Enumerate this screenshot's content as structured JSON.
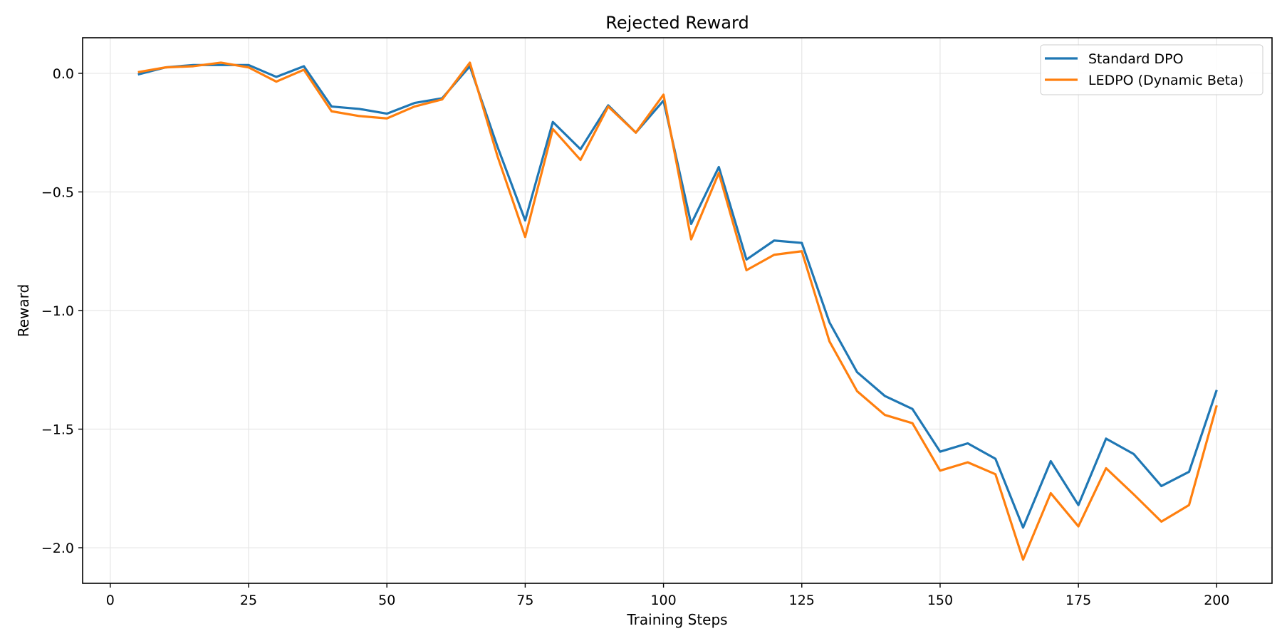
{
  "chart_data": {
    "type": "line",
    "title": "Rejected Reward",
    "xlabel": "Training Steps",
    "ylabel": "Reward",
    "xlim": [
      -5,
      210
    ],
    "ylim": [
      -2.15,
      0.15
    ],
    "x_ticks": [
      0,
      25,
      50,
      75,
      100,
      125,
      150,
      175,
      200
    ],
    "y_ticks": [
      0.0,
      -0.5,
      -1.0,
      -1.5,
      -2.0
    ],
    "y_tick_labels": [
      "0.0",
      "−0.5",
      "−1.0",
      "−1.5",
      "−2.0"
    ],
    "grid": true,
    "legend_position": "top-right",
    "x": [
      5,
      10,
      15,
      20,
      25,
      30,
      35,
      40,
      45,
      50,
      55,
      60,
      65,
      70,
      75,
      80,
      85,
      90,
      95,
      100,
      105,
      110,
      115,
      120,
      125,
      130,
      135,
      140,
      145,
      150,
      155,
      160,
      165,
      170,
      175,
      180,
      185,
      190,
      195,
      200
    ],
    "series": [
      {
        "name": "Standard DPO",
        "color": "#1f77b4",
        "values": [
          -0.005,
          0.025,
          0.035,
          0.035,
          0.035,
          -0.015,
          0.03,
          -0.14,
          -0.15,
          -0.17,
          -0.125,
          -0.105,
          0.03,
          -0.31,
          -0.62,
          -0.205,
          -0.32,
          -0.135,
          -0.25,
          -0.115,
          -0.635,
          -0.395,
          -0.785,
          -0.705,
          -0.715,
          -1.05,
          -1.26,
          -1.36,
          -1.415,
          -1.595,
          -1.56,
          -1.625,
          -1.915,
          -1.635,
          -1.82,
          -1.54,
          -1.605,
          -1.74,
          -1.68,
          -1.335
        ]
      },
      {
        "name": "LEDPO (Dynamic Beta)",
        "color": "#ff7f0e",
        "values": [
          0.005,
          0.025,
          0.03,
          0.045,
          0.025,
          -0.035,
          0.015,
          -0.16,
          -0.18,
          -0.19,
          -0.14,
          -0.11,
          0.045,
          -0.35,
          -0.69,
          -0.235,
          -0.365,
          -0.14,
          -0.25,
          -0.09,
          -0.7,
          -0.42,
          -0.83,
          -0.765,
          -0.75,
          -1.13,
          -1.34,
          -1.44,
          -1.475,
          -1.675,
          -1.64,
          -1.69,
          -2.05,
          -1.77,
          -1.91,
          -1.665,
          -1.775,
          -1.89,
          -1.82,
          -1.4
        ]
      }
    ]
  }
}
